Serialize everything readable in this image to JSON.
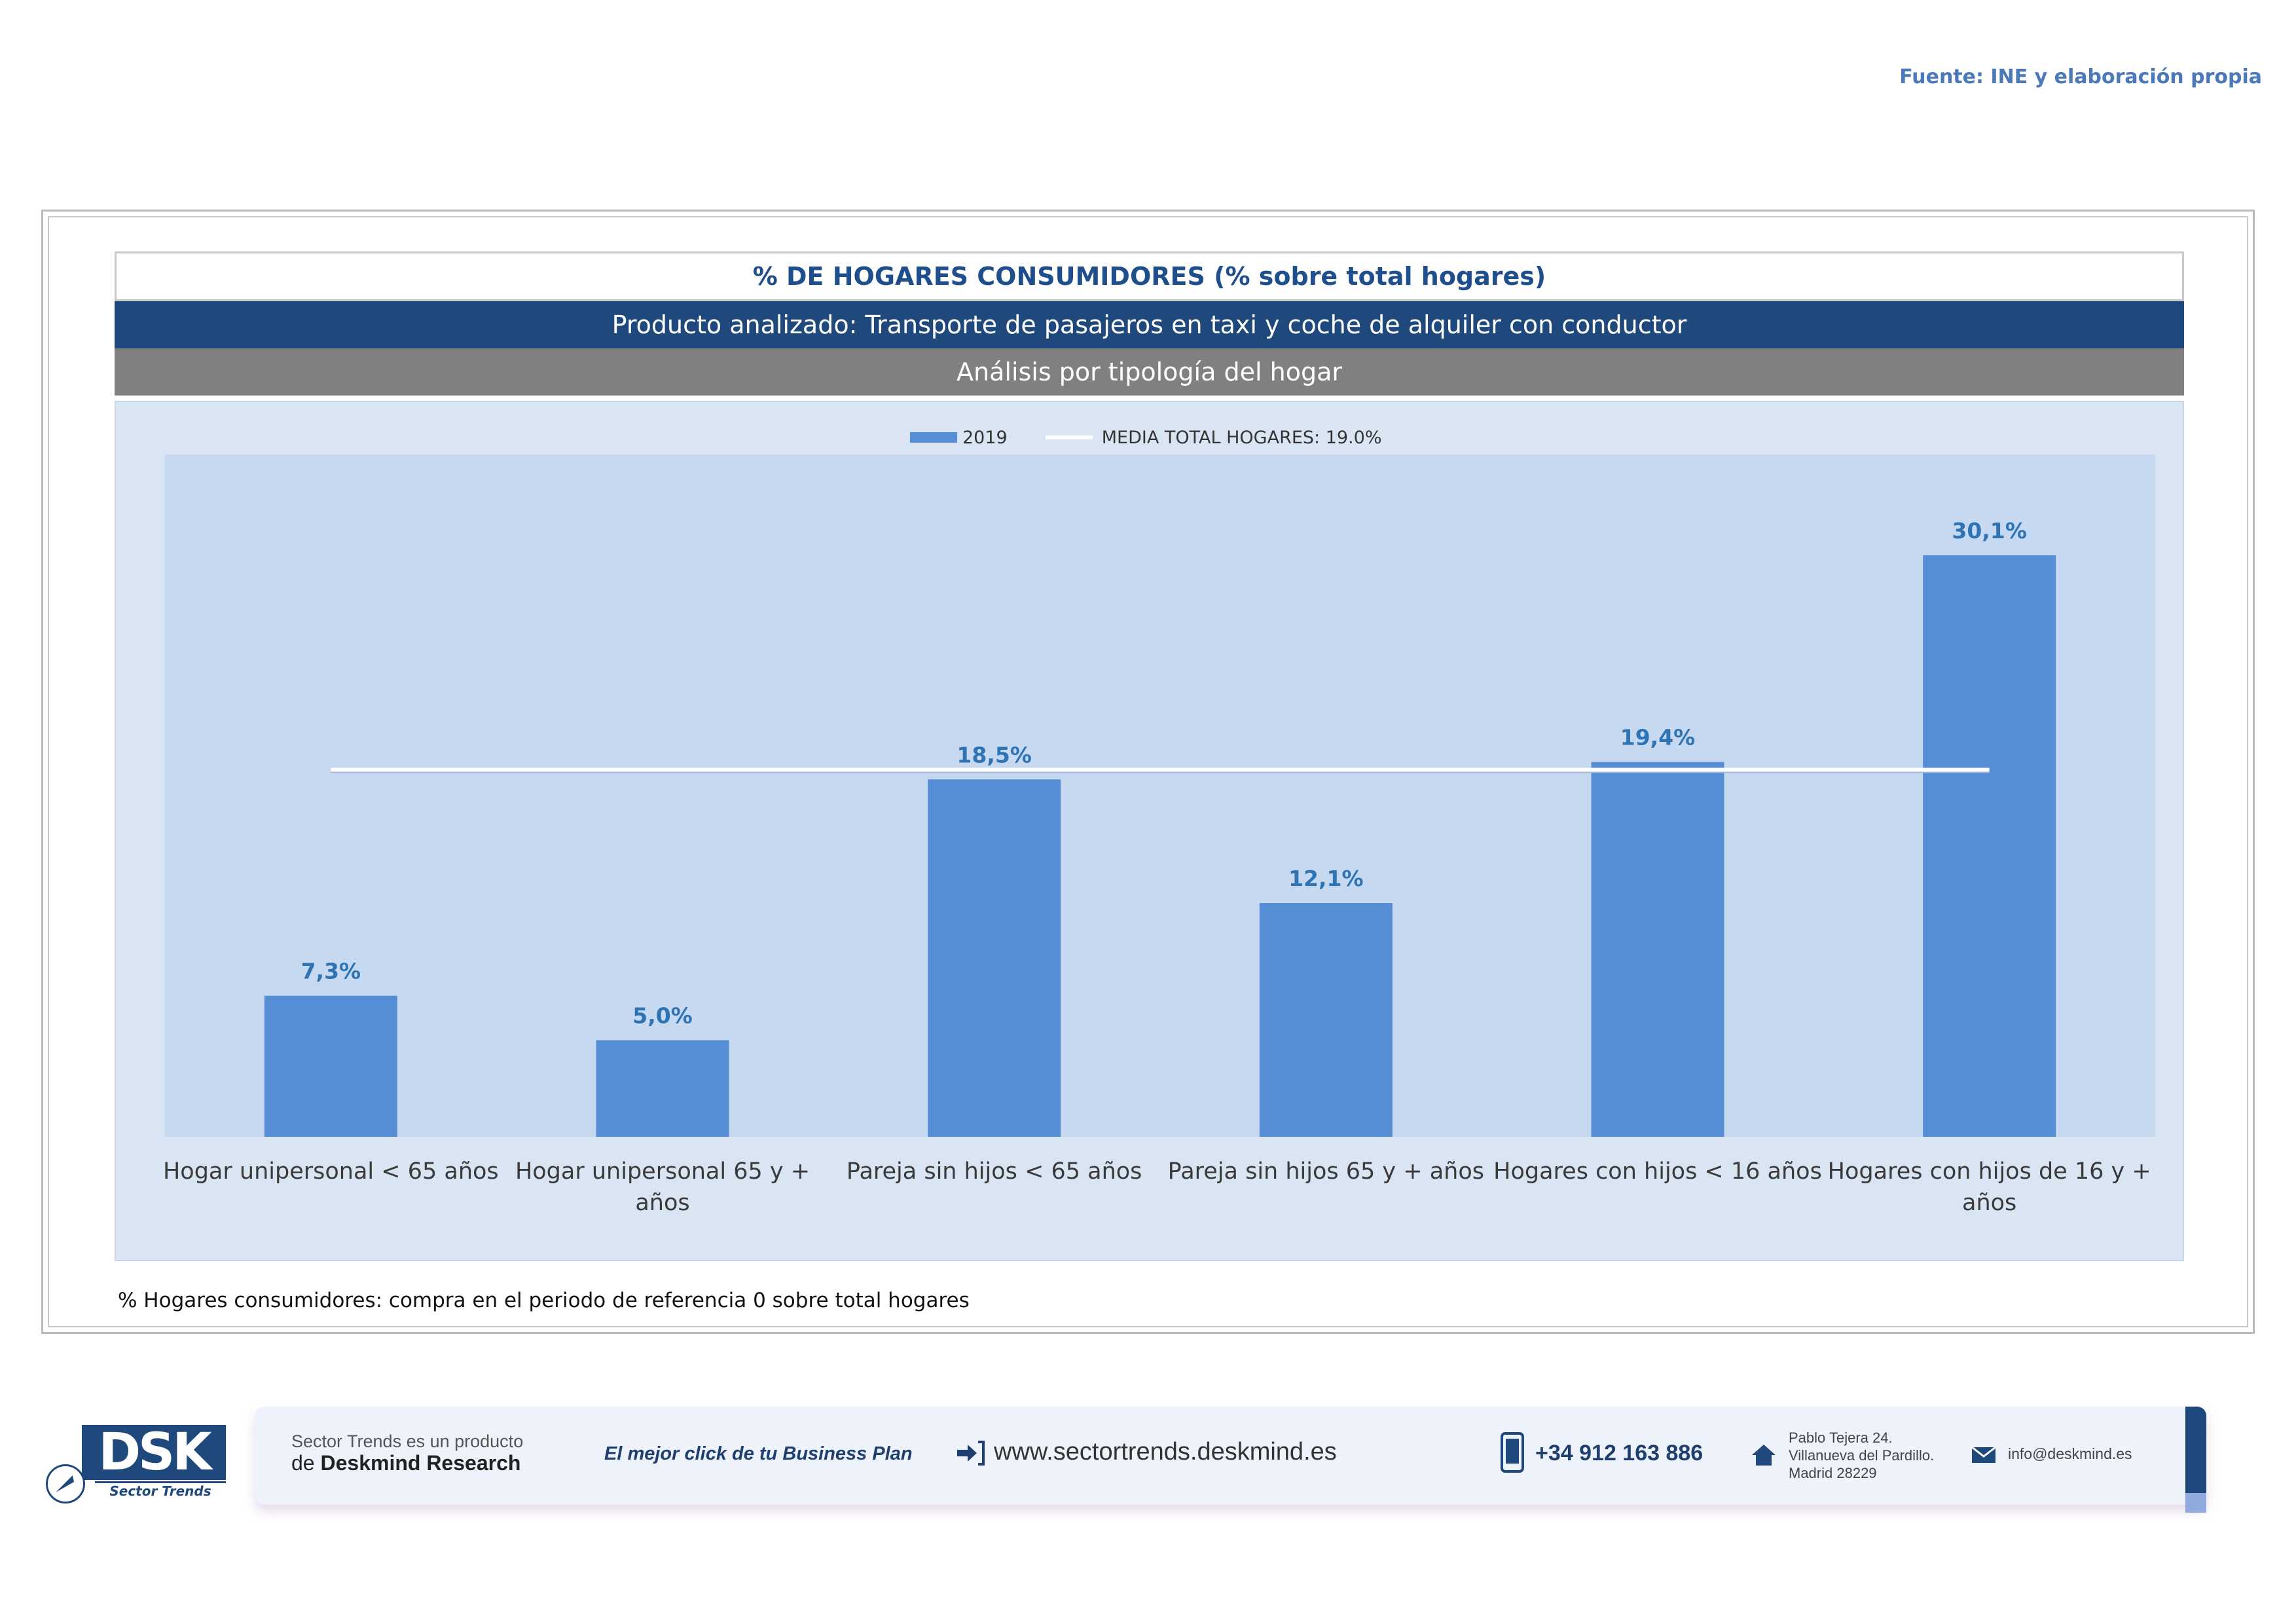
{
  "source": "Fuente: INE y elaboración propia",
  "header": {
    "title": "% DE HOGARES CONSUMIDORES (% sobre total hogares)",
    "product": "Producto analizado: Transporte de pasajeros en taxi y coche de alquiler con conductor",
    "analysis": "Análisis por tipología del hogar"
  },
  "legend": {
    "series_label": "2019",
    "mean_label": "MEDIA TOTAL  HOGARES:  19.0%"
  },
  "chart_data": {
    "type": "bar",
    "categories": [
      "Hogar unipersonal < 65 años",
      "Hogar unipersonal  65 y + años",
      "Pareja sin hijos < 65 años",
      "Pareja sin hijos 65 y + años",
      "Hogares con hijos < 16 años",
      "Hogares con hijos de 16 y + años"
    ],
    "category_lines": [
      [
        "Hogar unipersonal < 65 años"
      ],
      [
        "Hogar unipersonal  65 y +",
        "años"
      ],
      [
        "Pareja sin hijos < 65 años"
      ],
      [
        "Pareja sin hijos 65 y + años"
      ],
      [
        "Hogares con hijos < 16 años"
      ],
      [
        "Hogares con hijos de 16 y +",
        "años"
      ]
    ],
    "series": [
      {
        "name": "2019",
        "values": [
          7.3,
          5.0,
          18.5,
          12.1,
          19.4,
          30.1
        ]
      }
    ],
    "data_labels": [
      "7,3%",
      "5,0%",
      "18,5%",
      "12,1%",
      "19,4%",
      "30,1%"
    ],
    "reference_line": {
      "name": "MEDIA TOTAL  HOGARES",
      "value": 19.0
    },
    "ylim": [
      0,
      34
    ],
    "colors": {
      "bar": "#558ed5",
      "reference_line": "#ffffff",
      "labels": "#2e74b5"
    },
    "legend_position": "top-center",
    "grid": false
  },
  "footnote": "% Hogares consumidores: compra en el periodo de referencia 0 sobre total hogares",
  "footer": {
    "logo_text": "DSK",
    "logo_sub": "Sector Trends",
    "product_line": "Sector Trends es un producto",
    "company_prefix": "de ",
    "company_name": "Deskmind Research",
    "slogan": "El mejor click de tu Business Plan",
    "website": "www.sectortrends.deskmind.es",
    "phone": "+34 912 163 886",
    "address_lines": [
      "Pablo Tejera 24.",
      "Villanueva del Pardillo.",
      "Madrid 28229"
    ],
    "email": "info@deskmind.es",
    "icons": [
      "enter-arrow-icon",
      "mobile-phone-icon",
      "home-icon",
      "mail-icon"
    ]
  }
}
